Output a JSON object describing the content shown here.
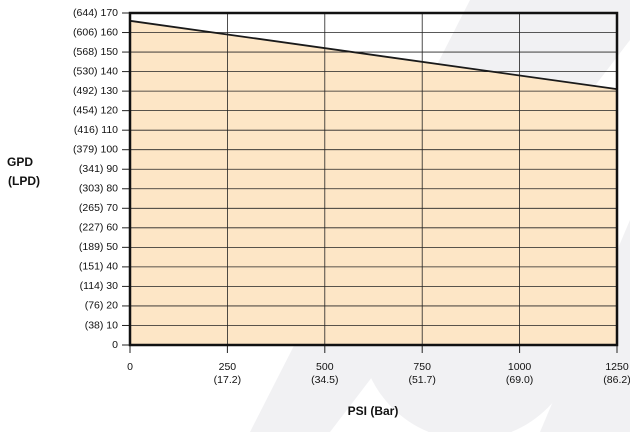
{
  "chart_data": {
    "type": "area",
    "xlabel": "PSI (Bar)",
    "ylabel": [
      "GPD",
      "(LPD)"
    ],
    "x": [
      0,
      1250
    ],
    "series": [
      {
        "color": "#1a1a1a",
        "fill": "#fde6c6",
        "values": [
          166,
          131
        ]
      }
    ],
    "xlim": [
      0,
      1250
    ],
    "xticks": [
      0,
      250,
      500,
      750,
      1000,
      1250
    ],
    "xtick_secondary_labels": [
      null,
      "(17.2)",
      "(34.5)",
      "(51.7)",
      "(69.0)",
      "(86.2)"
    ],
    "ylim": [
      0,
      170
    ],
    "yticks": [
      0,
      {
        "value": 10,
        "label": "(38) 10"
      },
      {
        "value": 20,
        "label": "(76) 20"
      },
      {
        "value": 30,
        "label": "(114) 30"
      },
      {
        "value": 40,
        "label": "(151) 40"
      },
      {
        "value": 50,
        "label": "(189) 50"
      },
      {
        "value": 60,
        "label": "(227) 60"
      },
      {
        "value": 70,
        "label": "(265) 70"
      },
      {
        "value": 80,
        "label": "(303) 80"
      },
      {
        "value": 90,
        "label": "(341) 90"
      },
      {
        "value": 100,
        "label": "(379) 100"
      },
      {
        "value": 110,
        "label": "(416) 110"
      },
      {
        "value": 120,
        "label": "(454) 120"
      },
      {
        "value": 130,
        "label": "(492) 130"
      },
      {
        "value": 140,
        "label": "(530) 140"
      },
      {
        "value": 150,
        "label": "(568) 150"
      },
      {
        "value": 160,
        "label": "(606) 160"
      },
      {
        "value": 170,
        "label": "(644) 170"
      }
    ],
    "grid": true
  }
}
